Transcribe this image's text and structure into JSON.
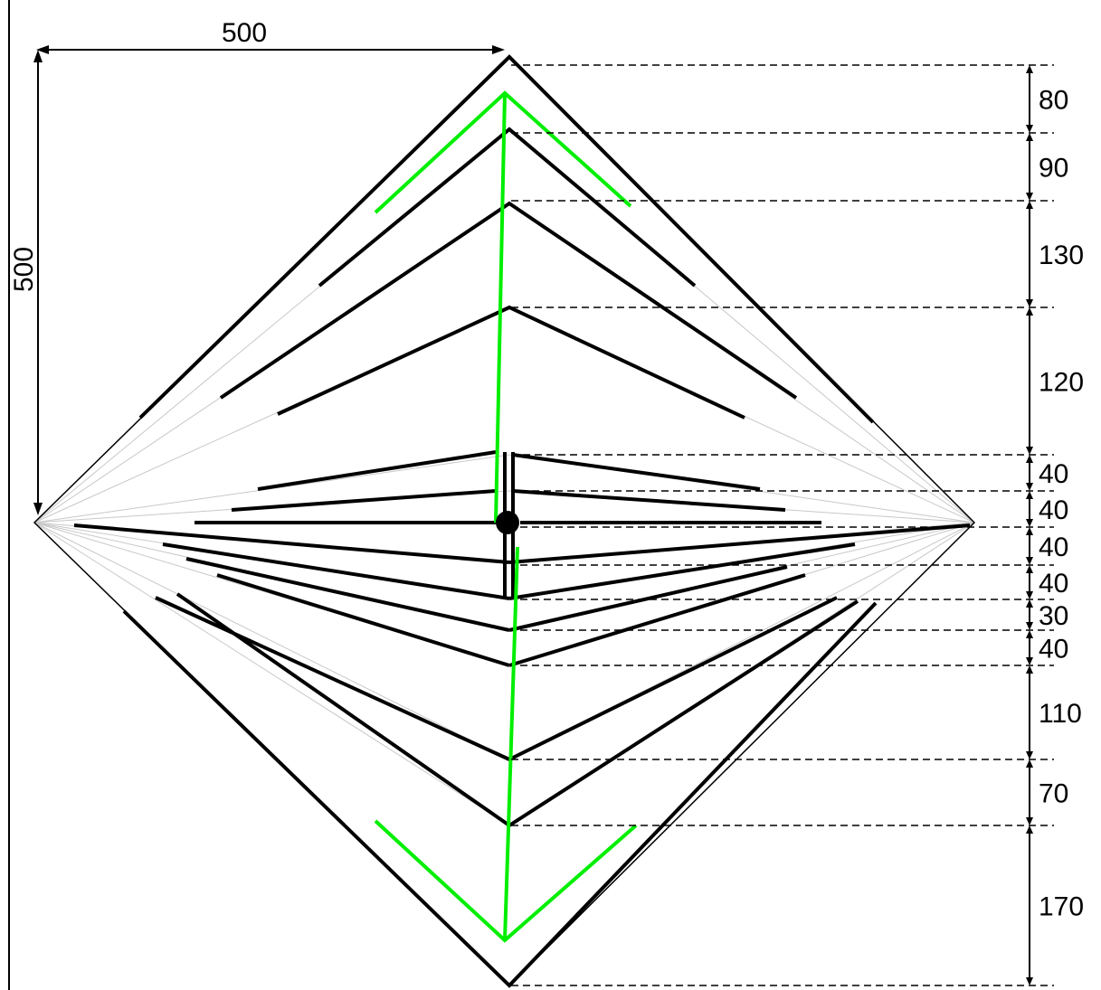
{
  "dimensions": {
    "width_label": "500",
    "height_label": "500"
  },
  "spacing_labels": [
    "80",
    "90",
    "130",
    "120",
    "40",
    "40",
    "40",
    "40",
    "30",
    "40",
    "110",
    "70",
    "170"
  ],
  "colors": {
    "ink": "#000000",
    "highlight": "#00ee00",
    "guide": "#bbbbbb"
  }
}
